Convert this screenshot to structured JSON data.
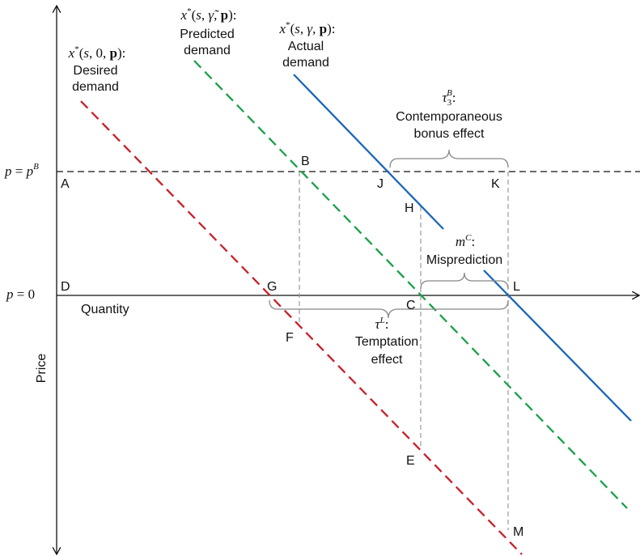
{
  "curves": {
    "desired": {
      "formula": [
        "x",
        "*",
        "(",
        "s",
        ", 0, ",
        "p",
        "):"
      ],
      "lines": [
        "Desired",
        "demand"
      ]
    },
    "predicted": {
      "formula": [
        "x",
        "*",
        "(",
        "s",
        ", ",
        "γ̃",
        ", ",
        "p",
        "):"
      ],
      "lines": [
        "Predicted",
        "demand"
      ]
    },
    "actual": {
      "formula": [
        "x",
        "*",
        "(",
        "s",
        ", ",
        "γ",
        ", ",
        "p",
        "):"
      ],
      "lines": [
        "Actual",
        "demand"
      ]
    }
  },
  "axes": {
    "y": "Price",
    "x": "Quantity"
  },
  "price_levels": {
    "bonus": [
      "p",
      " = ",
      "p",
      "B"
    ],
    "zero": [
      "p",
      " = 0"
    ]
  },
  "points": {
    "A": "A",
    "B": "B",
    "C": "C",
    "D": "D",
    "E": "E",
    "F": "F",
    "G": "G",
    "H": "H",
    "J": "J",
    "K": "K",
    "L": "L",
    "M": "M"
  },
  "annotations": {
    "bonus": {
      "formula": [
        "τ",
        "3",
        "B",
        ":"
      ],
      "lines": [
        "Contemporaneous",
        "bonus effect"
      ]
    },
    "misprediction": {
      "formula": [
        "m",
        "C",
        ":"
      ],
      "lines": [
        "Misprediction"
      ]
    },
    "temptation": {
      "formula": [
        "τ",
        "L",
        ":"
      ],
      "lines": [
        "Temptation",
        "effect"
      ]
    }
  }
}
